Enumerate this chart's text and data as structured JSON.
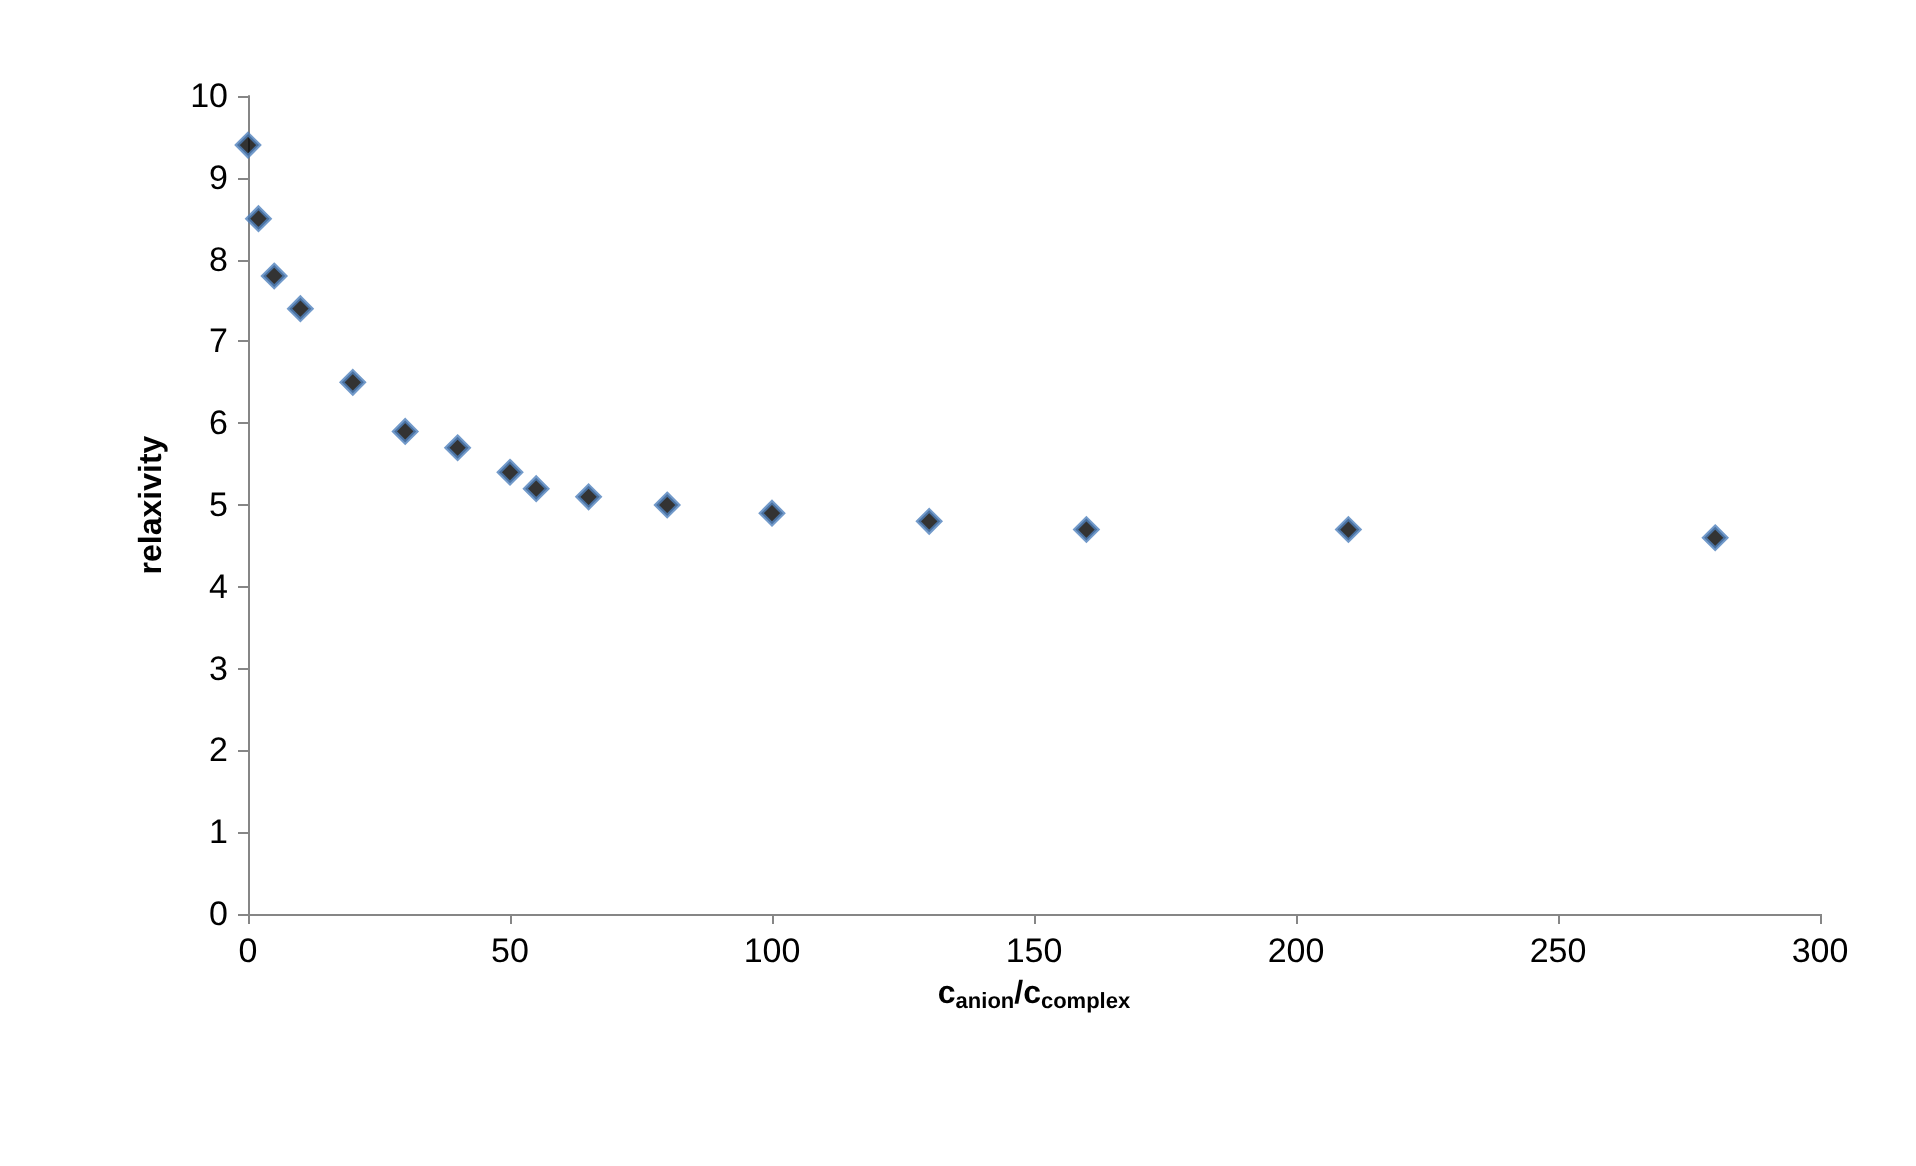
{
  "chart_data": {
    "type": "scatter",
    "xlabel": "c$_{anion}$/c$_{complex}$",
    "ylabel": "relaxivity",
    "x": [
      0,
      2,
      5,
      10,
      20,
      30,
      40,
      50,
      55,
      65,
      80,
      100,
      130,
      160,
      210,
      280
    ],
    "values": [
      9.4,
      8.5,
      7.8,
      7.4,
      6.5,
      5.9,
      5.7,
      5.4,
      5.2,
      5.1,
      5.0,
      4.9,
      4.8,
      4.7,
      4.7,
      4.6
    ],
    "color": "#000000",
    "marker": "diamond",
    "xlim": [
      0,
      300
    ],
    "xticks": [
      0,
      50,
      100,
      150,
      200,
      250,
      300
    ],
    "ylim": [
      0,
      10
    ],
    "yticks": [
      0,
      1,
      2,
      3,
      4,
      5,
      6,
      7,
      8,
      9,
      10
    ],
    "grid": false
  }
}
